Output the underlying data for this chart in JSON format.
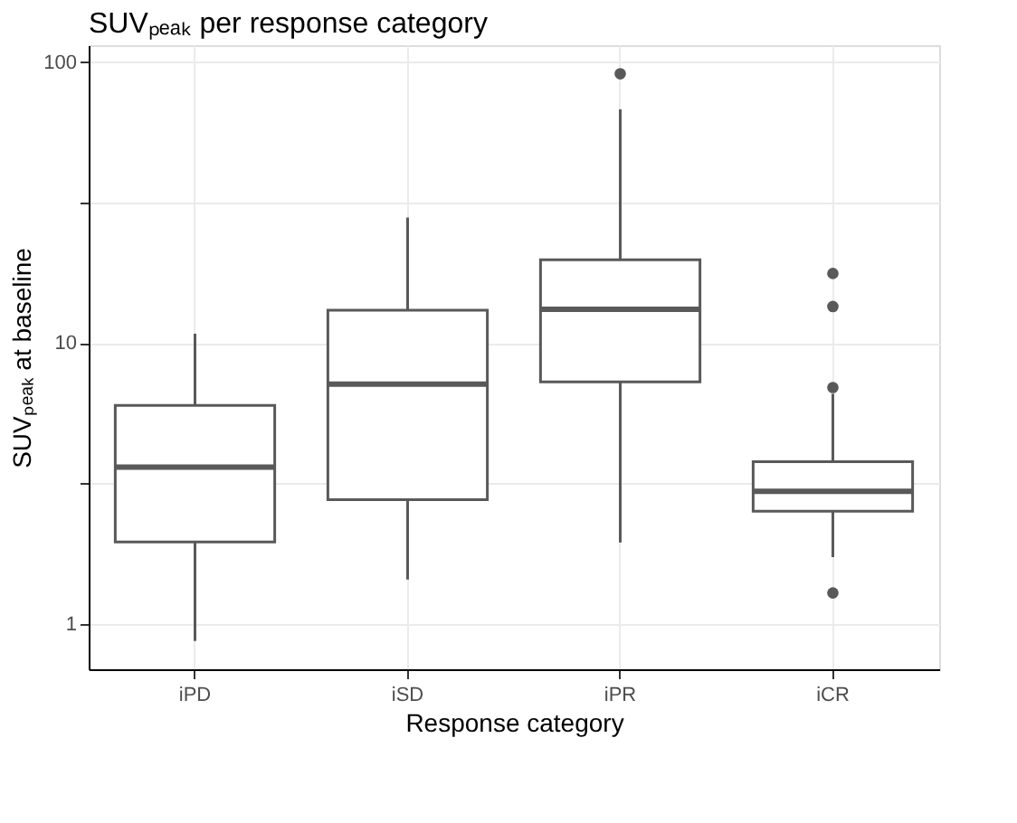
{
  "chart_data": {
    "type": "box",
    "title": "SUVₚₑₐₖ per response category",
    "xlabel": "Response category",
    "ylabel": "SUVₚₑₐₖ at baseline",
    "categories": [
      "iPD",
      "iSD",
      "iPR",
      "iCR"
    ],
    "boxes": [
      {
        "low": 0.87,
        "q1": 1.96,
        "median": 3.62,
        "q3": 6.0,
        "high": 10.8
      },
      {
        "low": 1.44,
        "q1": 2.77,
        "median": 7.14,
        "q3": 13.1,
        "high": 28
      },
      {
        "low": 1.95,
        "q1": 7.28,
        "median": 13.2,
        "q3": 19.8,
        "high": 68,
        "outliers": [
          91
        ]
      },
      {
        "low": 1.73,
        "q1": 2.52,
        "median": 2.97,
        "q3": 3.78,
        "high": 6.6,
        "outliers": [
          17.7,
          13.5,
          6.95,
          1.29
        ]
      }
    ],
    "color": "#595959",
    "log": true,
    "ylim": [
      0.69,
      115
    ],
    "yticks": [
      1,
      {
        "value": 3.16,
        "label": null
      },
      10,
      {
        "value": 31.6,
        "label": null
      },
      100
    ],
    "grid": true
  }
}
